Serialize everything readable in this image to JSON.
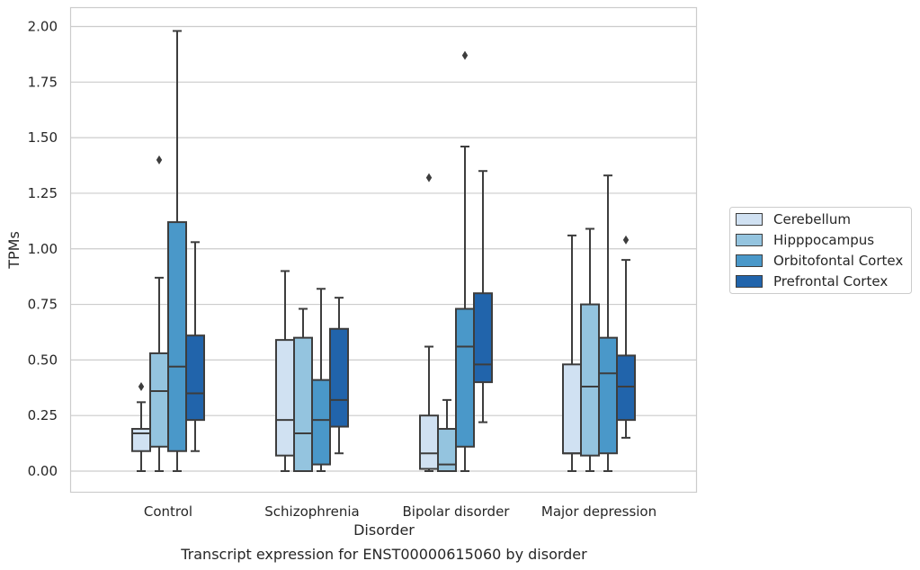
{
  "chart_data": {
    "type": "boxplot",
    "caption": "Transcript expression for ENST00000615060 by disorder",
    "xlabel": "Disorder",
    "ylabel": "TPMs",
    "ylim": [
      -0.1,
      2.08
    ],
    "yticks": [
      0.0,
      0.25,
      0.5,
      0.75,
      1.0,
      1.25,
      1.5,
      1.75,
      2.0
    ],
    "ytick_labels": [
      "0.00",
      "0.25",
      "0.50",
      "0.75",
      "1.00",
      "1.25",
      "1.50",
      "1.75",
      "2.00"
    ],
    "grid": true,
    "legend_position": "right",
    "categories": [
      "Control",
      "Schizophrenia",
      "Bipolar disorder",
      "Major depression"
    ],
    "series": [
      {
        "name": "Cerebellum",
        "color": "#d0e1f2",
        "boxes": [
          {
            "whislo": 0.0,
            "q1": 0.09,
            "med": 0.17,
            "q3": 0.19,
            "whishi": 0.31,
            "fliers": [
              0.38
            ]
          },
          {
            "whislo": 0.0,
            "q1": 0.07,
            "med": 0.23,
            "q3": 0.59,
            "whishi": 0.9,
            "fliers": []
          },
          {
            "whislo": 0.0,
            "q1": 0.01,
            "med": 0.08,
            "q3": 0.25,
            "whishi": 0.56,
            "fliers": [
              1.32
            ]
          },
          {
            "whislo": 0.0,
            "q1": 0.08,
            "med": 0.08,
            "q3": 0.48,
            "whishi": 1.06,
            "fliers": []
          }
        ]
      },
      {
        "name": "Hipppocampus",
        "color": "#94c4df",
        "boxes": [
          {
            "whislo": 0.0,
            "q1": 0.11,
            "med": 0.36,
            "q3": 0.53,
            "whishi": 0.87,
            "fliers": [
              1.4
            ]
          },
          {
            "whislo": 0.0,
            "q1": 0.0,
            "med": 0.17,
            "q3": 0.6,
            "whishi": 0.73,
            "fliers": []
          },
          {
            "whislo": 0.0,
            "q1": 0.0,
            "med": 0.03,
            "q3": 0.19,
            "whishi": 0.32,
            "fliers": []
          },
          {
            "whislo": 0.0,
            "q1": 0.07,
            "med": 0.38,
            "q3": 0.75,
            "whishi": 1.09,
            "fliers": []
          }
        ]
      },
      {
        "name": "Orbitofontal Cortex",
        "color": "#4a98c9",
        "boxes": [
          {
            "whislo": 0.0,
            "q1": 0.09,
            "med": 0.47,
            "q3": 1.12,
            "whishi": 1.98,
            "fliers": []
          },
          {
            "whislo": 0.0,
            "q1": 0.03,
            "med": 0.23,
            "q3": 0.41,
            "whishi": 0.82,
            "fliers": []
          },
          {
            "whislo": 0.0,
            "q1": 0.11,
            "med": 0.56,
            "q3": 0.73,
            "whishi": 1.46,
            "fliers": [
              1.87
            ]
          },
          {
            "whislo": 0.0,
            "q1": 0.08,
            "med": 0.44,
            "q3": 0.6,
            "whishi": 1.33,
            "fliers": []
          }
        ]
      },
      {
        "name": "Prefrontal Cortex",
        "color": "#2164ab",
        "boxes": [
          {
            "whislo": 0.09,
            "q1": 0.23,
            "med": 0.35,
            "q3": 0.61,
            "whishi": 1.03,
            "fliers": []
          },
          {
            "whislo": 0.08,
            "q1": 0.2,
            "med": 0.32,
            "q3": 0.64,
            "whishi": 0.78,
            "fliers": []
          },
          {
            "whislo": 0.22,
            "q1": 0.4,
            "med": 0.48,
            "q3": 0.8,
            "whishi": 1.35,
            "fliers": []
          },
          {
            "whislo": 0.15,
            "q1": 0.23,
            "med": 0.38,
            "q3": 0.52,
            "whishi": 0.95,
            "fliers": [
              1.04
            ]
          }
        ]
      }
    ]
  },
  "colors": {
    "grid": "#cccccc",
    "frame": "#cccccc",
    "box_edge": "#3d3d3d",
    "text": "#262626"
  }
}
